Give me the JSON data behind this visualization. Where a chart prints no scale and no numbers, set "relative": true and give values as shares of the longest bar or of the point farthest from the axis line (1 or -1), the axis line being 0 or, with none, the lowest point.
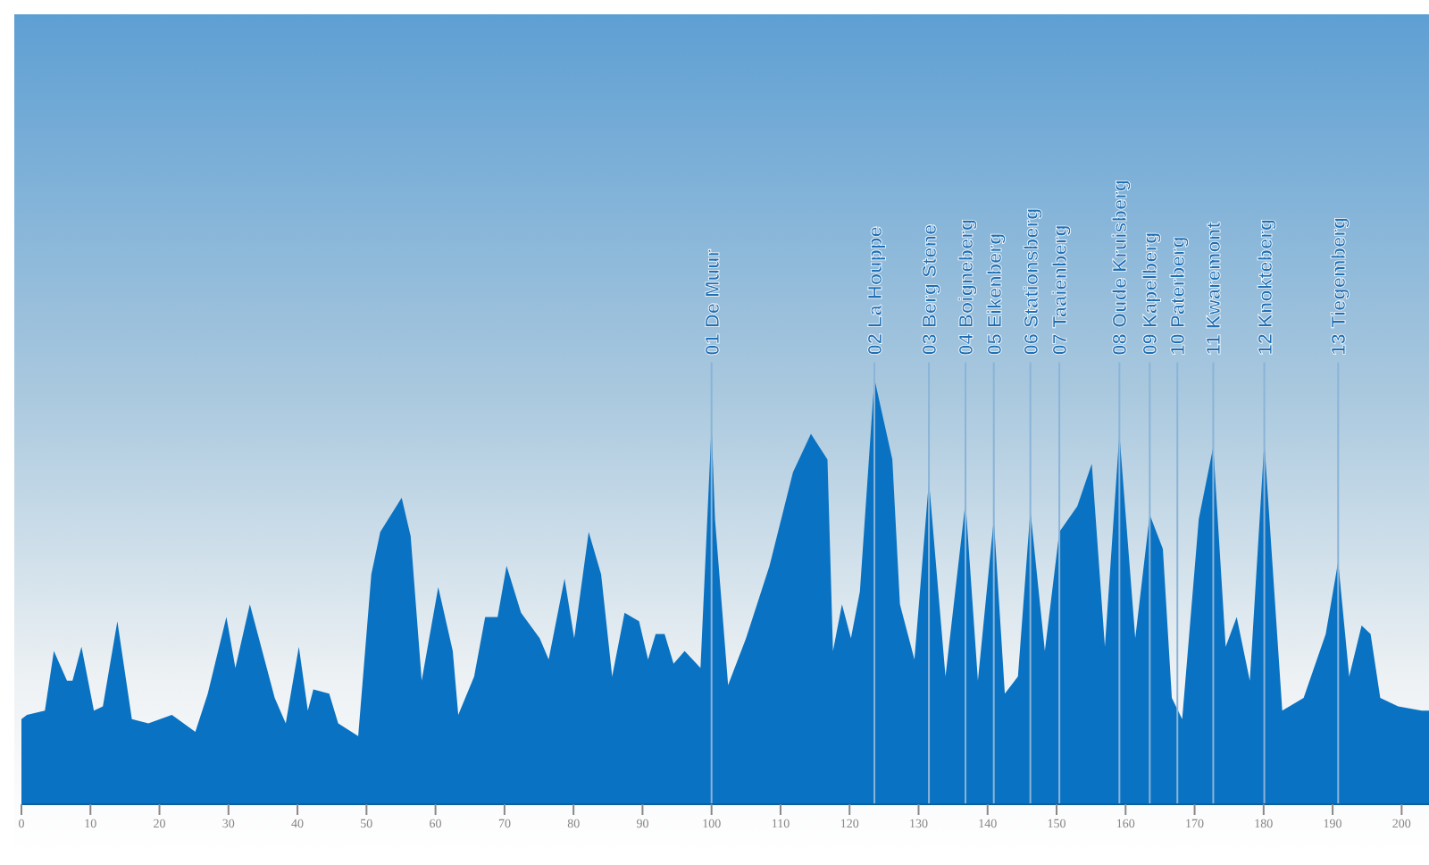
{
  "chart_data": {
    "type": "area",
    "relative": true,
    "color": "#0a72c2",
    "xlim": [
      0,
      205
    ],
    "xticks": [
      0,
      10,
      20,
      30,
      40,
      50,
      60,
      70,
      80,
      90,
      100,
      110,
      120,
      130,
      140,
      150,
      160,
      170,
      180,
      190,
      200
    ],
    "x": [
      0,
      0.8,
      3.4,
      4.7,
      6.6,
      7.4,
      8.7,
      10.5,
      11.8,
      13.9,
      16.0,
      18.4,
      21.8,
      25.2,
      27.0,
      29.7,
      31.0,
      33.1,
      36.7,
      38.3,
      40.2,
      41.5,
      42.3,
      44.6,
      45.9,
      48.8,
      50.7,
      52.0,
      55.1,
      56.4,
      58.0,
      60.4,
      62.5,
      63.3,
      65.6,
      67.2,
      69.0,
      70.3,
      72.4,
      75.1,
      76.4,
      78.7,
      80.1,
      82.2,
      84.0,
      85.6,
      87.4,
      89.5,
      90.8,
      91.9,
      93.2,
      94.5,
      96.1,
      98.4,
      100.0,
      100.5,
      102.4,
      105.0,
      108.4,
      111.8,
      114.4,
      116.8,
      117.6,
      118.9,
      120.2,
      121.5,
      123.6,
      126.2,
      127.3,
      129.4,
      131.5,
      133.9,
      136.8,
      138.6,
      140.9,
      142.5,
      144.4,
      146.2,
      148.3,
      150.4,
      153.0,
      155.1,
      157.0,
      159.1,
      161.4,
      163.5,
      165.4,
      166.7,
      168.2,
      170.6,
      172.7,
      174.5,
      176.1,
      178.0,
      180.1,
      182.7,
      185.8,
      189.0,
      190.8,
      192.4,
      194.2,
      195.5,
      196.9,
      199.5,
      202.9,
      204.7
    ],
    "values": [
      0.2,
      0.21,
      0.22,
      0.36,
      0.29,
      0.29,
      0.37,
      0.22,
      0.23,
      0.43,
      0.2,
      0.19,
      0.21,
      0.17,
      0.26,
      0.44,
      0.32,
      0.47,
      0.25,
      0.19,
      0.37,
      0.22,
      0.27,
      0.26,
      0.19,
      0.16,
      0.54,
      0.64,
      0.72,
      0.63,
      0.29,
      0.51,
      0.36,
      0.21,
      0.3,
      0.44,
      0.44,
      0.56,
      0.45,
      0.39,
      0.34,
      0.53,
      0.39,
      0.64,
      0.54,
      0.3,
      0.45,
      0.43,
      0.34,
      0.4,
      0.4,
      0.33,
      0.36,
      0.32,
      0.89,
      0.67,
      0.28,
      0.39,
      0.56,
      0.78,
      0.87,
      0.81,
      0.36,
      0.47,
      0.39,
      0.5,
      1.0,
      0.81,
      0.47,
      0.34,
      0.76,
      0.3,
      0.71,
      0.29,
      0.67,
      0.26,
      0.3,
      0.69,
      0.36,
      0.64,
      0.7,
      0.8,
      0.37,
      0.87,
      0.39,
      0.68,
      0.6,
      0.25,
      0.2,
      0.67,
      0.84,
      0.37,
      0.44,
      0.29,
      0.85,
      0.22,
      0.25,
      0.4,
      0.57,
      0.3,
      0.42,
      0.4,
      0.25,
      0.23,
      0.22,
      0.22
    ],
    "ref_lines": [
      {
        "axis": "x",
        "value": 100,
        "label": "01 De Muur",
        "color": "#8ab4d8"
      },
      {
        "axis": "x",
        "value": 123.6,
        "label": "02 La Houppe",
        "color": "#8ab4d8"
      },
      {
        "axis": "x",
        "value": 131.5,
        "label": "03 Berg Stene",
        "color": "#8ab4d8"
      },
      {
        "axis": "x",
        "value": 136.8,
        "label": "04 Boigneberg",
        "color": "#8ab4d8"
      },
      {
        "axis": "x",
        "value": 140.9,
        "label": "05 Eikenberg",
        "color": "#8ab4d8"
      },
      {
        "axis": "x",
        "value": 146.2,
        "label": "06 Stationsberg",
        "color": "#8ab4d8"
      },
      {
        "axis": "x",
        "value": 150.4,
        "label": "07 Taaienberg",
        "color": "#8ab4d8"
      },
      {
        "axis": "x",
        "value": 159.1,
        "label": "08 Oude Kruisberg",
        "color": "#8ab4d8"
      },
      {
        "axis": "x",
        "value": 163.5,
        "label": "09 Kapelberg",
        "color": "#8ab4d8"
      },
      {
        "axis": "x",
        "value": 167.5,
        "label": "10 Paterberg",
        "color": "#8ab4d8"
      },
      {
        "axis": "x",
        "value": 172.7,
        "label": "11 Kwaremont",
        "color": "#8ab4d8"
      },
      {
        "axis": "x",
        "value": 180.1,
        "label": "12 Knokteberg",
        "color": "#8ab4d8"
      },
      {
        "axis": "x",
        "value": 190.8,
        "label": "13 Tiegemberg",
        "color": "#8ab4d8"
      }
    ]
  }
}
